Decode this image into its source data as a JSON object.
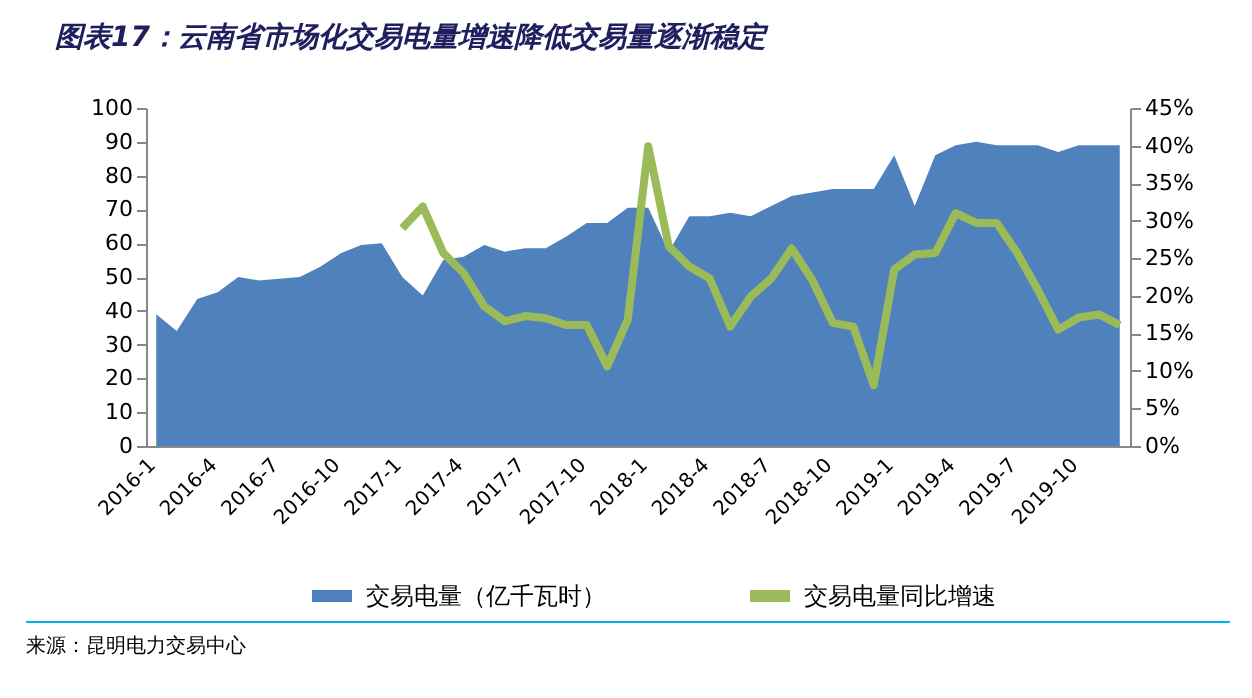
{
  "chart_data": {
    "type": "area",
    "title": "图表17：云南省市场化交易电量增速降低交易量逐渐稳定",
    "categories": [
      "2016-1",
      null,
      null,
      "2016-4",
      null,
      null,
      "2016-7",
      null,
      null,
      "2016-10",
      null,
      null,
      "2017-1",
      null,
      null,
      "2017-4",
      null,
      null,
      "2017-7",
      null,
      null,
      "2017-10",
      null,
      null,
      "2018-1",
      null,
      null,
      "2018-4",
      null,
      null,
      "2018-7",
      null,
      null,
      "2018-10",
      null,
      null,
      "2019-1",
      null,
      null,
      "2019-4",
      null,
      null,
      "2019-7",
      null,
      null,
      "2019-10",
      null,
      null
    ],
    "series": [
      {
        "name": "交易电量（亿千瓦时）",
        "color": "#4f81bd",
        "values": [
          39,
          34,
          43.5,
          45.5,
          50,
          49,
          49.5,
          50,
          53,
          57,
          59.5,
          60,
          50,
          44.5,
          55,
          56,
          59.5,
          57.5,
          58.5,
          58.5,
          62,
          66,
          66,
          70.5,
          70.5,
          57.5,
          68,
          68,
          69,
          68,
          71,
          74,
          75,
          76,
          76,
          76,
          86,
          71,
          86,
          89,
          90,
          89,
          89,
          89,
          87,
          89,
          89,
          89
        ]
      },
      {
        "name": "交易电量同比增速",
        "type": "line",
        "axis": "y2",
        "color": "#9bbb59",
        "values": [
          null,
          null,
          null,
          null,
          null,
          null,
          null,
          null,
          null,
          null,
          null,
          null,
          29,
          31.9,
          25.7,
          23,
          18.6,
          16.6,
          17.3,
          17,
          16.1,
          16.1,
          10.6,
          16.8,
          39.9,
          26.6,
          23.9,
          22.3,
          15.9,
          19.9,
          22.3,
          26.3,
          22.1,
          16.4,
          15.9,
          8.1,
          23.5,
          25.5,
          25.7,
          31,
          29.7,
          29.7,
          25.7,
          20.8,
          15.5,
          17.1,
          17.5,
          16.1
        ]
      }
    ],
    "ylim": [
      0,
      100
    ],
    "yticks": [
      0,
      10,
      20,
      30,
      40,
      50,
      60,
      70,
      80,
      90,
      100
    ],
    "y2lim": [
      0,
      45
    ],
    "y2ticks": [
      {
        "value": 0,
        "label": "0%"
      },
      {
        "value": 5,
        "label": "5%"
      },
      {
        "value": 10,
        "label": "10%"
      },
      {
        "value": 15,
        "label": "15%"
      },
      {
        "value": 20,
        "label": "20%"
      },
      {
        "value": 25,
        "label": "25%"
      },
      {
        "value": 30,
        "label": "30%"
      },
      {
        "value": 35,
        "label": "35%"
      },
      {
        "value": 40,
        "label": "40%"
      },
      {
        "value": 45,
        "label": "45%"
      }
    ],
    "legend": "bottom",
    "annotations": [
      "来源：昆明电力交易中心"
    ]
  }
}
